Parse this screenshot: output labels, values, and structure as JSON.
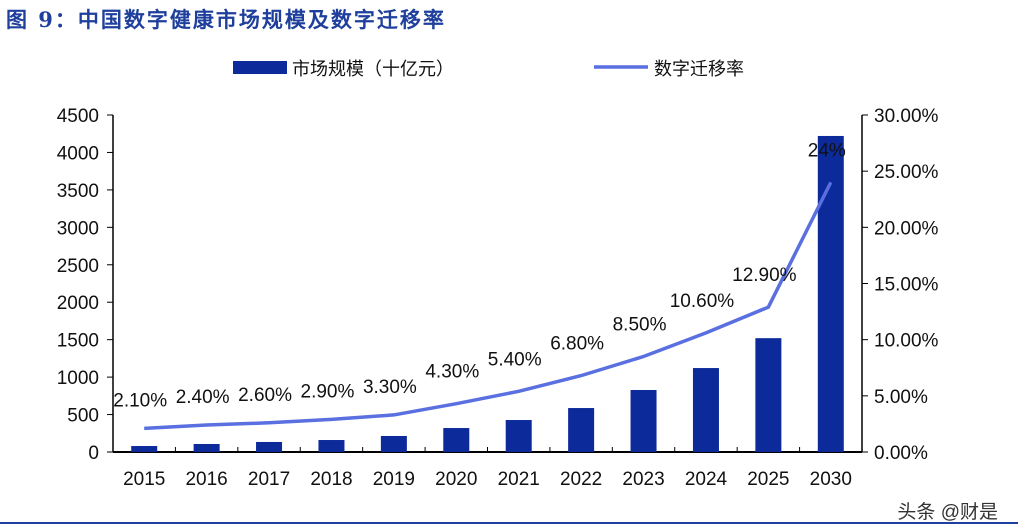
{
  "title": "图 9：中国数字健康市场规模及数字迁移率",
  "watermark": "头条 @财是",
  "chart_data": {
    "type": "bar+line",
    "categories": [
      "2015",
      "2016",
      "2017",
      "2018",
      "2019",
      "2020",
      "2021",
      "2022",
      "2023",
      "2024",
      "2025",
      "2030"
    ],
    "series": [
      {
        "name": "市场规模（十亿元）",
        "type": "bar",
        "axis": "left",
        "color": "#0c2a99",
        "values": [
          80,
          107,
          134,
          160,
          214,
          320,
          427,
          587,
          828,
          1121,
          1520,
          4220
        ]
      },
      {
        "name": "数字迁移率",
        "type": "line",
        "axis": "right",
        "color": "#5a6fe0",
        "values": [
          2.1,
          2.4,
          2.6,
          2.9,
          3.3,
          4.3,
          5.4,
          6.8,
          8.5,
          10.6,
          12.9,
          24
        ],
        "labels": [
          "2.10%",
          "2.40%",
          "2.60%",
          "2.90%",
          "3.30%",
          "4.30%",
          "5.40%",
          "6.80%",
          "8.50%",
          "10.60%",
          "12.90%",
          "24%"
        ]
      }
    ],
    "left_axis": {
      "ylim": [
        0,
        4500
      ],
      "ticks": [
        "0",
        "500",
        "1000",
        "1500",
        "2000",
        "2500",
        "3000",
        "3500",
        "4000",
        "4500"
      ]
    },
    "right_axis": {
      "ylim": [
        0,
        30
      ],
      "ticks": [
        "0.00%",
        "5.00%",
        "10.00%",
        "15.00%",
        "20.00%",
        "25.00%",
        "30.00%"
      ]
    },
    "legend": "top",
    "grid": false
  }
}
